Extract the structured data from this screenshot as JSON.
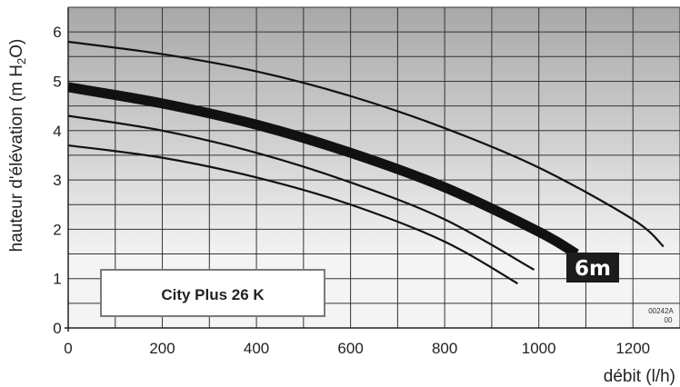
{
  "chart_data": {
    "type": "line",
    "xlabel": "débit (l/h)",
    "ylabel": "hauteur d'élévation (m H2O)",
    "ylabel_parts": {
      "main": "hauteur d'élévation (m H",
      "sub": "2",
      "tail": "O)"
    },
    "xlim": [
      0,
      1300
    ],
    "ylim": [
      0,
      6.5
    ],
    "xticks": [
      0,
      200,
      400,
      600,
      800,
      1000,
      1200
    ],
    "yticks": [
      0,
      1,
      2,
      3,
      4,
      5,
      6
    ],
    "grid": true,
    "series": [
      {
        "highlight": false,
        "x": [
          0,
          200,
          400,
          600,
          800,
          1000,
          1200,
          1265
        ],
        "y": [
          5.8,
          5.55,
          5.2,
          4.7,
          4.05,
          3.25,
          2.2,
          1.65
        ]
      },
      {
        "highlight": true,
        "label": "6m",
        "x": [
          0,
          200,
          400,
          600,
          800,
          1000,
          1080
        ],
        "y": [
          4.88,
          4.55,
          4.12,
          3.55,
          2.85,
          1.95,
          1.5
        ]
      },
      {
        "highlight": false,
        "x": [
          0,
          200,
          400,
          600,
          800,
          990
        ],
        "y": [
          4.3,
          4.0,
          3.55,
          2.95,
          2.2,
          1.18
        ]
      },
      {
        "highlight": false,
        "x": [
          0,
          200,
          400,
          600,
          800,
          955
        ],
        "y": [
          3.7,
          3.45,
          3.05,
          2.5,
          1.75,
          0.9
        ]
      }
    ],
    "annotations": {
      "model": "City Plus 26 K",
      "curve_tag": "6m",
      "reference_code": [
        "00242A",
        "00"
      ]
    }
  }
}
